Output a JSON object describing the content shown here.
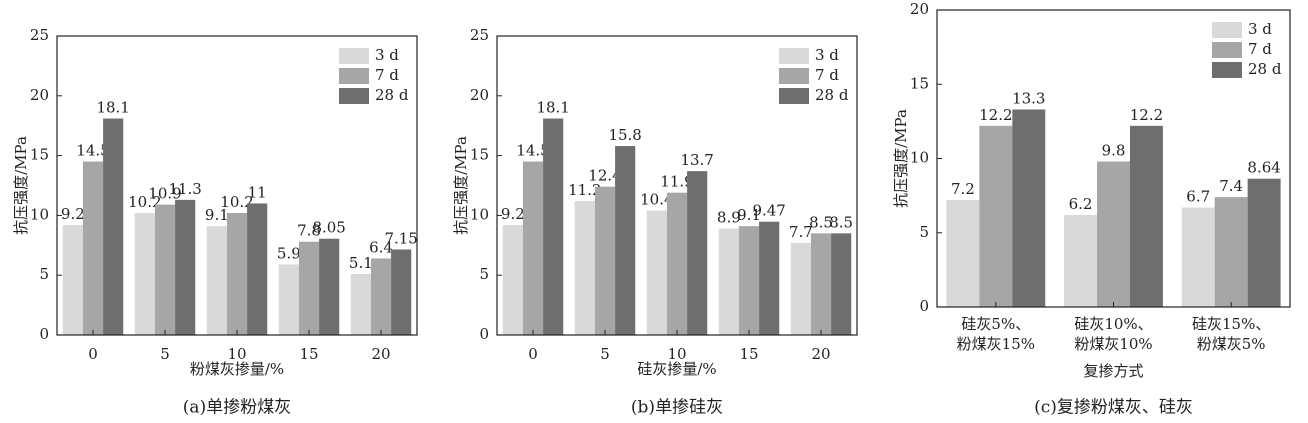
{
  "chart_data": [
    {
      "type": "bar",
      "caption": "(a)单掺粉煤灰",
      "x_label": "粉煤灰掺量/%",
      "y_label": "抗压强度/MPa",
      "categories": [
        "0",
        "5",
        "10",
        "15",
        "20"
      ],
      "series": [
        {
          "name": "3 d",
          "color": "#d9d9d9",
          "values": [
            9.2,
            10.2,
            9.1,
            5.9,
            5.1
          ]
        },
        {
          "name": "7 d",
          "color": "#a6a6a6",
          "values": [
            14.5,
            10.9,
            10.2,
            7.8,
            6.4
          ]
        },
        {
          "name": "28 d",
          "color": "#6e6e6e",
          "values": [
            18.1,
            11.3,
            11,
            8.05,
            7.15
          ]
        }
      ],
      "ylim": [
        0,
        25
      ],
      "yticks": [
        0,
        5,
        10,
        15,
        20,
        25
      ],
      "legend": "upper right"
    },
    {
      "type": "bar",
      "caption": "(b)单掺硅灰",
      "x_label": "硅灰掺量/%",
      "y_label": "抗压强度/MPa",
      "categories": [
        "0",
        "5",
        "10",
        "15",
        "20"
      ],
      "series": [
        {
          "name": "3 d",
          "color": "#d9d9d9",
          "values": [
            9.2,
            11.2,
            10.4,
            8.9,
            7.7
          ]
        },
        {
          "name": "7 d",
          "color": "#a6a6a6",
          "values": [
            14.5,
            12.4,
            11.9,
            9.1,
            8.5
          ]
        },
        {
          "name": "28 d",
          "color": "#6e6e6e",
          "values": [
            18.1,
            15.8,
            13.7,
            9.47,
            8.5
          ]
        }
      ],
      "ylim": [
        0,
        25
      ],
      "yticks": [
        0,
        5,
        10,
        15,
        20,
        25
      ],
      "legend": "upper right"
    },
    {
      "type": "bar",
      "caption": "(c)复掺粉煤灰、硅灰",
      "x_label": "复掺方式",
      "y_label": "抗压强度/MPa",
      "categories": [
        [
          "硅灰5%、",
          "粉煤灰15%"
        ],
        [
          "硅灰10%、",
          "粉煤灰10%"
        ],
        [
          "硅灰15%、",
          "粉煤灰5%"
        ]
      ],
      "series": [
        {
          "name": "3 d",
          "color": "#d9d9d9",
          "values": [
            7.2,
            6.2,
            6.7
          ]
        },
        {
          "name": "7 d",
          "color": "#a6a6a6",
          "values": [
            12.2,
            9.8,
            7.4
          ]
        },
        {
          "name": "28 d",
          "color": "#6e6e6e",
          "values": [
            13.3,
            12.2,
            8.64
          ]
        }
      ],
      "ylim": [
        0,
        20
      ],
      "yticks": [
        0,
        5,
        10,
        15,
        20
      ],
      "legend": "upper right"
    }
  ]
}
